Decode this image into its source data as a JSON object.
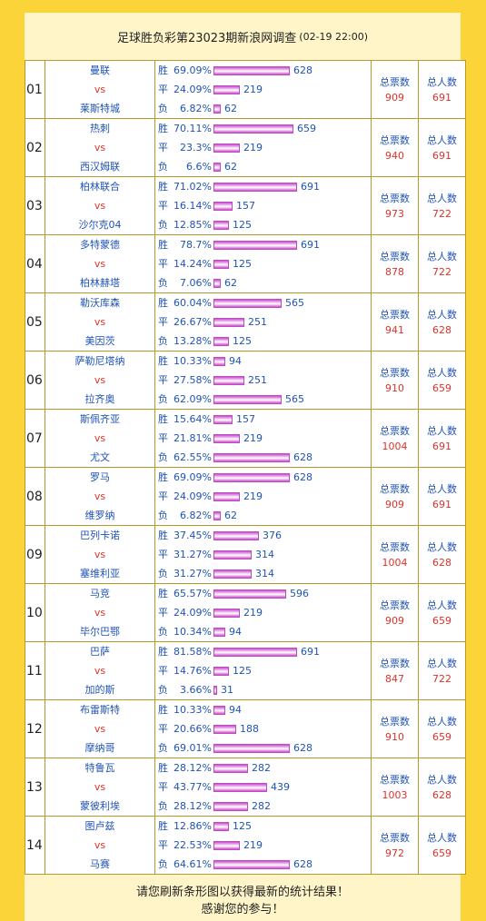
{
  "title": {
    "main": "足球胜负彩第23023期新浪网调查",
    "date": "(02-19 22:00)"
  },
  "labels": {
    "win": "胜",
    "draw": "平",
    "loss": "负",
    "vs": "vs",
    "total_votes": "总票数",
    "total_people": "总人数"
  },
  "matches": [
    {
      "no": "01",
      "home": "曼联",
      "away": "莱斯特城",
      "win_pct": "69.09%",
      "win": 628,
      "draw_pct": "24.09%",
      "draw": 219,
      "loss_pct": "6.82%",
      "loss": 62,
      "votes": 909,
      "people": 691
    },
    {
      "no": "02",
      "home": "热刺",
      "away": "西汉姆联",
      "win_pct": "70.11%",
      "win": 659,
      "draw_pct": "23.3%",
      "draw": 219,
      "loss_pct": "6.6%",
      "loss": 62,
      "votes": 940,
      "people": 691
    },
    {
      "no": "03",
      "home": "柏林联合",
      "away": "沙尔克04",
      "win_pct": "71.02%",
      "win": 691,
      "draw_pct": "16.14%",
      "draw": 157,
      "loss_pct": "12.85%",
      "loss": 125,
      "votes": 973,
      "people": 722
    },
    {
      "no": "04",
      "home": "多特蒙德",
      "away": "柏林赫塔",
      "win_pct": "78.7%",
      "win": 691,
      "draw_pct": "14.24%",
      "draw": 125,
      "loss_pct": "7.06%",
      "loss": 62,
      "votes": 878,
      "people": 722
    },
    {
      "no": "05",
      "home": "勒沃库森",
      "away": "美因茨",
      "win_pct": "60.04%",
      "win": 565,
      "draw_pct": "26.67%",
      "draw": 251,
      "loss_pct": "13.28%",
      "loss": 125,
      "votes": 941,
      "people": 628
    },
    {
      "no": "06",
      "home": "萨勒尼塔纳",
      "away": "拉齐奥",
      "win_pct": "10.33%",
      "win": 94,
      "draw_pct": "27.58%",
      "draw": 251,
      "loss_pct": "62.09%",
      "loss": 565,
      "votes": 910,
      "people": 659
    },
    {
      "no": "07",
      "home": "斯佩齐亚",
      "away": "尤文",
      "win_pct": "15.64%",
      "win": 157,
      "draw_pct": "21.81%",
      "draw": 219,
      "loss_pct": "62.55%",
      "loss": 628,
      "votes": 1004,
      "people": 691
    },
    {
      "no": "08",
      "home": "罗马",
      "away": "维罗纳",
      "win_pct": "69.09%",
      "win": 628,
      "draw_pct": "24.09%",
      "draw": 219,
      "loss_pct": "6.82%",
      "loss": 62,
      "votes": 909,
      "people": 691
    },
    {
      "no": "09",
      "home": "巴列卡诺",
      "away": "塞维利亚",
      "win_pct": "37.45%",
      "win": 376,
      "draw_pct": "31.27%",
      "draw": 314,
      "loss_pct": "31.27%",
      "loss": 314,
      "votes": 1004,
      "people": 628
    },
    {
      "no": "10",
      "home": "马竞",
      "away": "毕尔巴鄂",
      "win_pct": "65.57%",
      "win": 596,
      "draw_pct": "24.09%",
      "draw": 219,
      "loss_pct": "10.34%",
      "loss": 94,
      "votes": 909,
      "people": 659
    },
    {
      "no": "11",
      "home": "巴萨",
      "away": "加的斯",
      "win_pct": "81.58%",
      "win": 691,
      "draw_pct": "14.76%",
      "draw": 125,
      "loss_pct": "3.66%",
      "loss": 31,
      "votes": 847,
      "people": 722
    },
    {
      "no": "12",
      "home": "布雷斯特",
      "away": "摩纳哥",
      "win_pct": "10.33%",
      "win": 94,
      "draw_pct": "20.66%",
      "draw": 188,
      "loss_pct": "69.01%",
      "loss": 628,
      "votes": 910,
      "people": 659
    },
    {
      "no": "13",
      "home": "特鲁瓦",
      "away": "蒙彼利埃",
      "win_pct": "28.12%",
      "win": 282,
      "draw_pct": "43.77%",
      "draw": 439,
      "loss_pct": "28.12%",
      "loss": 282,
      "votes": 1003,
      "people": 628
    },
    {
      "no": "14",
      "home": "图卢兹",
      "away": "马赛",
      "win_pct": "12.86%",
      "win": 125,
      "draw_pct": "22.53%",
      "draw": 219,
      "loss_pct": "64.61%",
      "loss": 628,
      "votes": 972,
      "people": 659
    }
  ],
  "footer": {
    "line1": "请您刷新条形图以获得最新的统计结果！",
    "line2": "感谢您的参与！"
  }
}
